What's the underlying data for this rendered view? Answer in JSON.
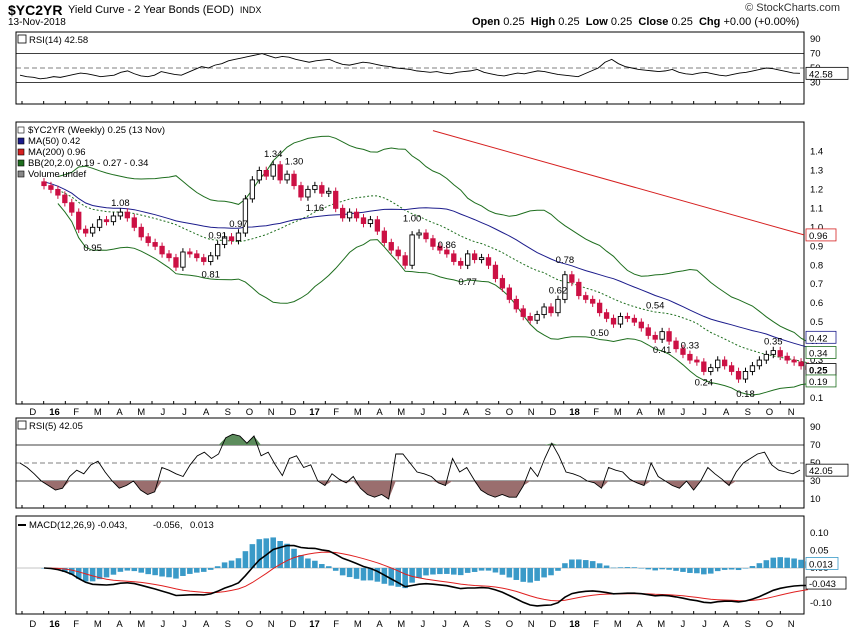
{
  "header": {
    "symbol": "$YC2YR",
    "subtitle": "Yield Curve - 2 Year Bonds (EOD)",
    "exchange": "INDX",
    "date": "13-Nov-2018",
    "open_label": "Open",
    "open": "0.25",
    "high_label": "High",
    "high": "0.25",
    "low_label": "Low",
    "low": "0.25",
    "close_label": "Close",
    "close": "0.25",
    "chg_label": "Chg",
    "chg": "+0.00 (+0.00%)",
    "watermark": "© StockCharts.com"
  },
  "colors": {
    "up": "#000000",
    "down": "#cc1144",
    "ma50": "#1c1c8c",
    "ma200": "#d62020",
    "bb": "#1e6e1e",
    "rsi_over": "#5c8c5c",
    "rsi_under": "#9a6e6e",
    "macd_line": "#000000",
    "signal_line": "#e02020",
    "hist": "#3a9ac8"
  },
  "x_axis_labels": [
    "D",
    "16",
    "F",
    "M",
    "A",
    "M",
    "J",
    "J",
    "A",
    "S",
    "O",
    "N",
    "D",
    "17",
    "F",
    "M",
    "A",
    "M",
    "J",
    "J",
    "A",
    "S",
    "O",
    "N",
    "D",
    "18",
    "F",
    "M",
    "A",
    "M",
    "J",
    "J",
    "A",
    "S",
    "O",
    "N"
  ],
  "rsi14": {
    "label": "RSI(14) 42.58",
    "current": 42.58,
    "current_label": "42.58",
    "ticks": [
      "90",
      "70",
      "50",
      "30"
    ],
    "values": [
      40,
      38,
      37,
      35,
      36,
      38,
      37,
      39,
      41,
      43,
      42,
      40,
      38,
      39,
      40,
      44,
      46,
      42,
      39,
      38,
      40,
      45,
      43,
      41,
      40,
      44,
      48,
      52,
      50,
      54,
      56,
      60,
      62,
      64,
      66,
      68,
      70,
      67,
      64,
      66,
      65,
      62,
      60,
      58,
      60,
      61,
      62,
      58,
      55,
      54,
      56,
      58,
      57,
      55,
      53,
      52,
      50,
      49,
      48,
      46,
      45,
      44,
      45,
      43,
      42,
      44,
      45,
      46,
      48,
      44,
      42,
      40,
      39,
      41,
      43,
      42,
      44,
      46,
      45,
      43,
      41,
      40,
      39,
      38,
      42,
      46,
      50,
      58,
      62,
      56,
      52,
      50,
      48,
      47,
      46,
      45,
      46,
      48,
      44,
      42,
      41,
      43,
      44,
      42,
      40,
      39,
      41,
      43,
      44,
      46,
      48,
      50,
      49,
      47,
      45,
      43,
      42.58
    ]
  },
  "price": {
    "label": "$YC2YR (Weekly) 0.25 (13 Nov)",
    "ma50_label": "MA(50) 0.42",
    "ma200_label": "MA(200) 0.96",
    "bb_label": "BB(20,2.0) 0.19 - 0.27 - 0.34",
    "vol_label": "Volume undef",
    "ticks": [
      "1.4",
      "1.3",
      "1.2",
      "1.1",
      "1.0",
      "0.9",
      "0.8",
      "0.7",
      "0.6",
      "0.5",
      "0.4",
      "0.3",
      "0.2",
      "0.1"
    ],
    "ma200_tag": "0.96",
    "ma50_tag": "0.42",
    "bb_upper_tag": "0.34",
    "close_tag": "0.25",
    "bb_lower_tag": "0.19",
    "annotations": [
      "1.08",
      "0.95",
      "0.91",
      "0.97",
      "0.81",
      "1.34",
      "1.30",
      "1.16",
      "1.00",
      "0.86",
      "0.77",
      "0.78",
      "0.62",
      "0.50",
      "0.54",
      "0.41",
      "0.33",
      "0.24",
      "0.35",
      "0.18"
    ],
    "closes": [
      1.22,
      1.2,
      1.17,
      1.13,
      1.08,
      0.99,
      0.97,
      1.0,
      1.04,
      1.03,
      1.06,
      1.08,
      1.05,
      1.0,
      0.95,
      0.92,
      0.9,
      0.86,
      0.84,
      0.79,
      0.87,
      0.86,
      0.84,
      0.82,
      0.85,
      0.91,
      0.95,
      0.93,
      0.97,
      1.15,
      1.25,
      1.3,
      1.27,
      1.33,
      1.25,
      1.28,
      1.22,
      1.16,
      1.2,
      1.22,
      1.18,
      1.19,
      1.1,
      1.05,
      1.08,
      1.05,
      1.02,
      1.04,
      0.98,
      0.92,
      0.88,
      0.85,
      0.8,
      0.96,
      0.97,
      0.94,
      0.9,
      0.88,
      0.86,
      0.82,
      0.8,
      0.86,
      0.83,
      0.84,
      0.8,
      0.73,
      0.68,
      0.62,
      0.57,
      0.53,
      0.51,
      0.54,
      0.58,
      0.55,
      0.62,
      0.75,
      0.71,
      0.64,
      0.62,
      0.6,
      0.55,
      0.52,
      0.49,
      0.53,
      0.52,
      0.5,
      0.47,
      0.43,
      0.41,
      0.45,
      0.4,
      0.36,
      0.33,
      0.3,
      0.29,
      0.24,
      0.26,
      0.3,
      0.27,
      0.24,
      0.2,
      0.24,
      0.27,
      0.3,
      0.33,
      0.35,
      0.32,
      0.3,
      0.29,
      0.27,
      0.25
    ]
  },
  "rsi5": {
    "label": "RSI(5) 42.05",
    "current": 42.05,
    "current_label": "42.05",
    "ticks": [
      "90",
      "70",
      "50",
      "30",
      "10"
    ],
    "values": [
      50,
      45,
      38,
      30,
      25,
      20,
      22,
      35,
      42,
      38,
      48,
      52,
      40,
      30,
      22,
      25,
      30,
      20,
      15,
      18,
      45,
      42,
      38,
      35,
      48,
      58,
      62,
      55,
      60,
      78,
      82,
      80,
      72,
      80,
      58,
      62,
      48,
      36,
      55,
      58,
      45,
      48,
      30,
      25,
      38,
      32,
      28,
      35,
      22,
      15,
      12,
      15,
      10,
      60,
      60,
      50,
      40,
      38,
      35,
      28,
      25,
      55,
      40,
      45,
      32,
      20,
      15,
      12,
      15,
      12,
      12,
      25,
      45,
      35,
      55,
      72,
      58,
      40,
      38,
      35,
      30,
      28,
      22,
      45,
      42,
      40,
      32,
      28,
      25,
      50,
      35,
      30,
      25,
      22,
      30,
      20,
      30,
      45,
      38,
      32,
      25,
      40,
      50,
      55,
      60,
      62,
      48,
      42,
      40,
      38,
      42.05
    ]
  },
  "macd": {
    "label_prefix": "MACD(12,26,9)",
    "macd_value": "-0.043",
    "signal_value": "-0.056",
    "hist_value": "0.013",
    "ticks": [
      "0.10",
      "0.05",
      "0.00",
      "-0.05",
      "-0.10"
    ],
    "macd_tag": "-0.043",
    "hist_tag": "0.013"
  },
  "chart_data": {
    "type": "candlestick",
    "title": "$YC2YR Yield Curve - 2 Year Bonds (EOD)",
    "period": "Weekly",
    "y_range": [
      0.1,
      1.5
    ],
    "last_close": 0.25,
    "annotated_levels": [
      1.08,
      0.95,
      0.91,
      0.97,
      0.81,
      1.34,
      1.3,
      1.16,
      1.0,
      0.86,
      0.77,
      0.78,
      0.62,
      0.5,
      0.54,
      0.41,
      0.33,
      0.24,
      0.35,
      0.18
    ],
    "indicators": {
      "RSI14": 42.58,
      "RSI5": 42.05,
      "MA50": 0.42,
      "MA200": 0.96,
      "BB_lower": 0.19,
      "BB_mid": 0.27,
      "BB_upper": 0.34,
      "MACD": -0.043,
      "Signal": -0.056,
      "Histogram": 0.013
    }
  }
}
